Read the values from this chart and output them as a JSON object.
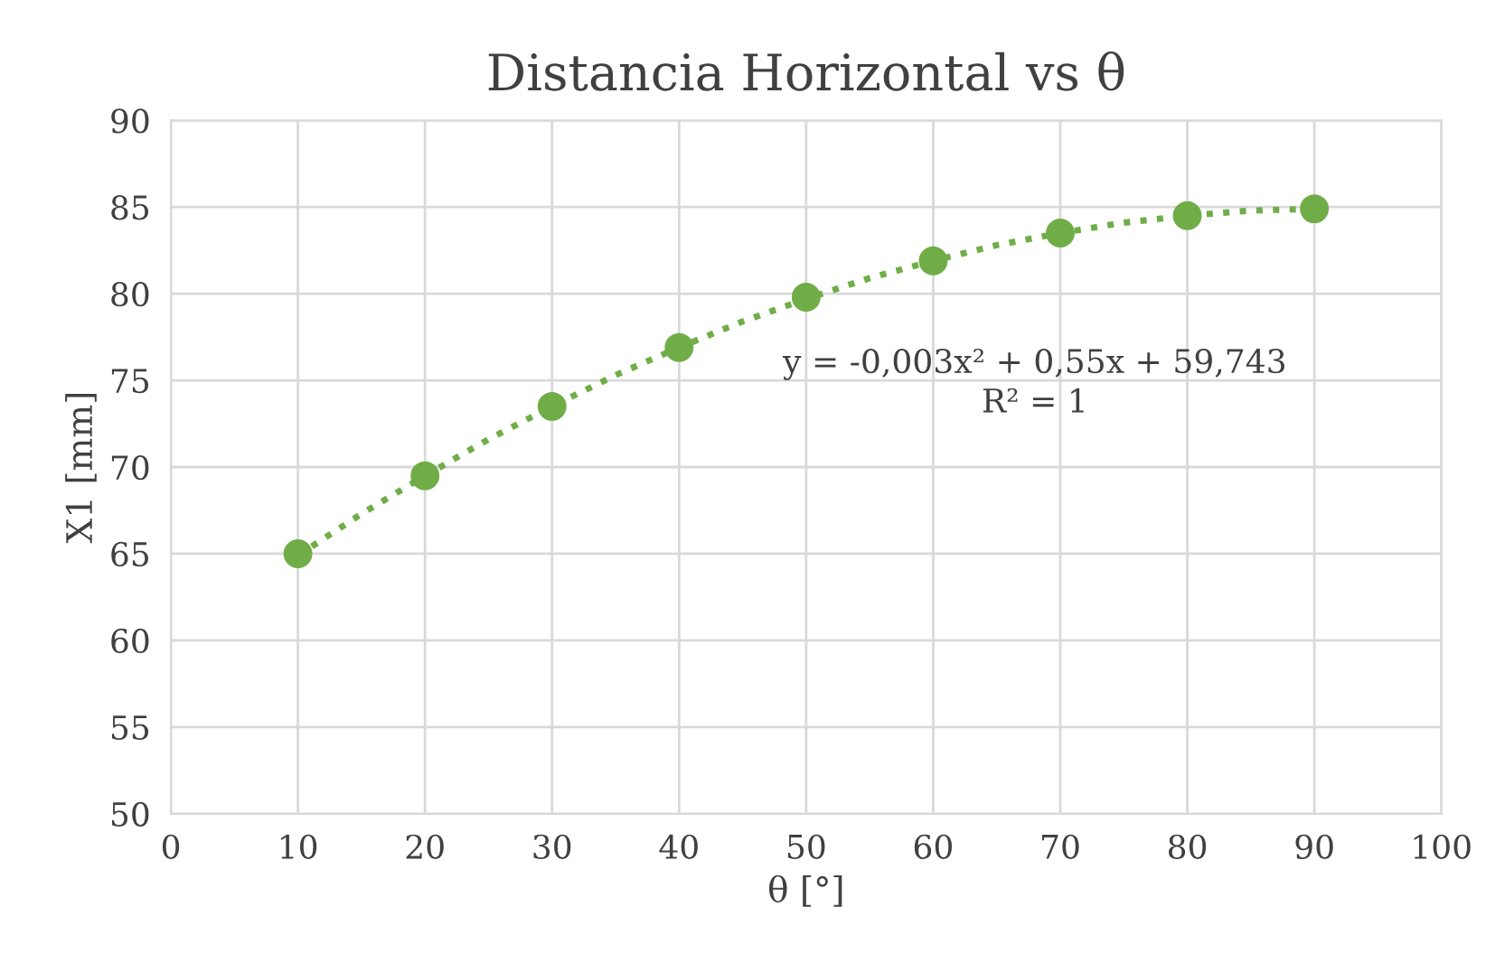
{
  "chart_data": {
    "type": "scatter",
    "title": "Distancia Horizontal vs θ",
    "xlabel": "θ [°]",
    "ylabel": "X1 [mm]",
    "series": [
      {
        "color": "#70ad47",
        "marker": "circle",
        "x": [
          10,
          20,
          30,
          40,
          50,
          60,
          70,
          80,
          90
        ],
        "values": [
          65.0,
          69.5,
          73.5,
          76.9,
          79.8,
          81.9,
          83.5,
          84.5,
          84.9
        ]
      },
      {
        "type": "line",
        "color": "#70ad47",
        "marker": "none",
        "line_style": "dotted",
        "x": [
          10,
          15,
          20,
          25,
          30,
          35,
          40,
          45,
          50,
          55,
          60,
          65,
          70,
          75,
          80,
          85,
          90
        ],
        "values": [
          64.9,
          67.3,
          69.5,
          71.6,
          73.5,
          75.3,
          76.9,
          78.4,
          79.7,
          80.9,
          81.9,
          82.8,
          83.5,
          84.1,
          84.5,
          84.8,
          84.9
        ]
      }
    ],
    "annotations": [
      "y = -0,003x² + 0,55x + 59,743",
      "R² = 1"
    ],
    "xlim": [
      0,
      100
    ],
    "xticks": [
      0,
      10,
      20,
      30,
      40,
      50,
      60,
      70,
      80,
      90,
      100
    ],
    "ylim": [
      50,
      90
    ],
    "yticks": [
      50,
      55,
      60,
      65,
      70,
      75,
      80,
      85,
      90
    ],
    "grid": true,
    "legend": false
  }
}
